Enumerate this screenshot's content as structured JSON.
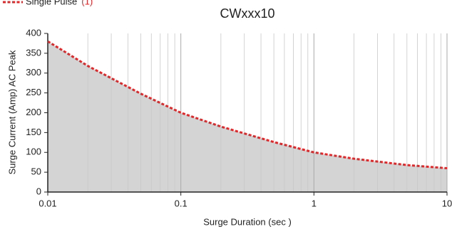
{
  "chart_data": {
    "type": "area-line",
    "title": "CWxxx10",
    "xlabel": "Surge Duration    (sec )",
    "ylabel": "Surge Current    (Amp) AC Peak",
    "xscale": "log",
    "x": [
      0.01,
      0.02,
      0.05,
      0.1,
      0.2,
      0.5,
      1,
      2,
      5,
      10
    ],
    "series": [
      {
        "name": "Single Pulse",
        "legend_note": "(1)",
        "color": "#e0282a",
        "fill": "#d4d4d4",
        "values": [
          380,
          318,
          248,
          200,
          165,
          126,
          100,
          84,
          68,
          60
        ]
      }
    ],
    "xlim": [
      0.01,
      10
    ],
    "ylim": [
      0,
      400
    ],
    "xticks": [
      0.01,
      0.1,
      1,
      10
    ],
    "x_minor_ticks": [
      0.02,
      0.03,
      0.04,
      0.05,
      0.06,
      0.07,
      0.08,
      0.09,
      0.2,
      0.3,
      0.4,
      0.5,
      0.6,
      0.7,
      0.8,
      0.9,
      2,
      3,
      4,
      5,
      6,
      7,
      8,
      9
    ],
    "yticks": [
      0,
      50,
      100,
      150,
      200,
      250,
      300,
      350,
      400
    ],
    "grid": true,
    "legend": "top-left"
  }
}
